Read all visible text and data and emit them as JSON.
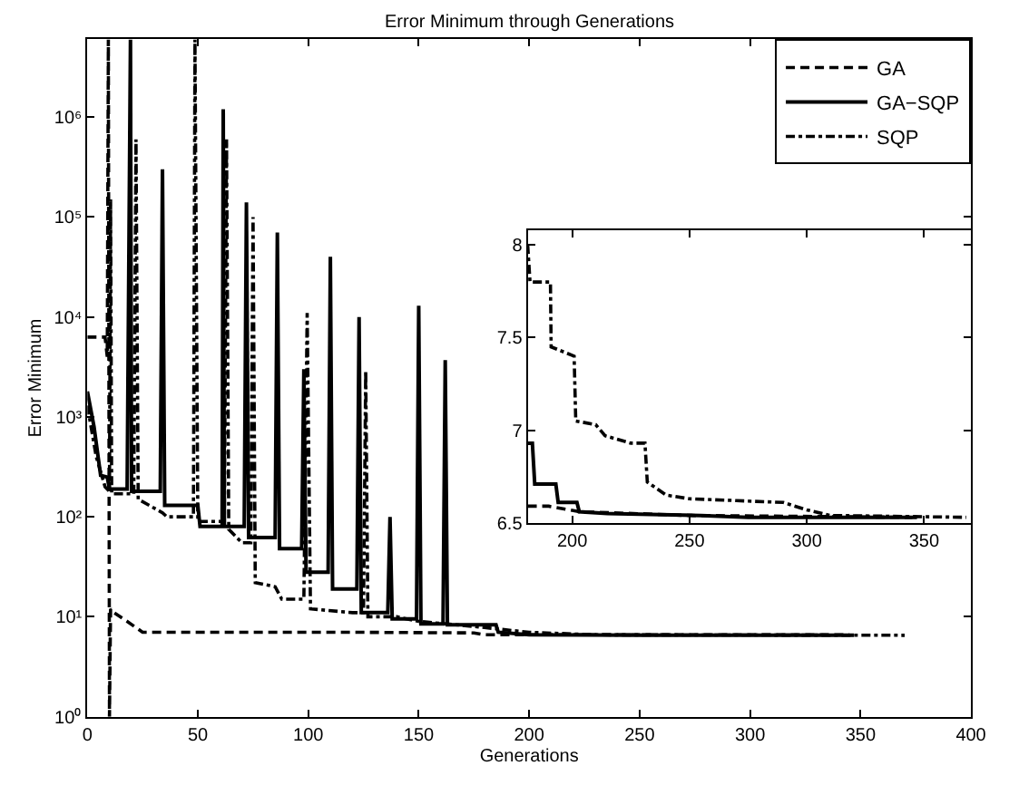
{
  "chart_data": [
    {
      "type": "line",
      "title": "Error Minimum through Generations",
      "xlabel": "Generations",
      "ylabel": "Error Minimum",
      "log": "y",
      "legend": "top right",
      "marker": "none",
      "xlim": [
        0,
        400
      ],
      "xticks": [
        0,
        50,
        100,
        150,
        200,
        250,
        300,
        350,
        400
      ],
      "ylim": [
        1,
        6000000
      ],
      "yticks": [
        {
          "value": 1,
          "label": "10⁰"
        },
        {
          "value": 10,
          "label": "10¹"
        },
        {
          "value": 100,
          "label": "10²"
        },
        {
          "value": 1000,
          "label": "10³"
        },
        {
          "value": 10000,
          "label": "10⁴"
        },
        {
          "value": 100000,
          "label": "10⁵"
        },
        {
          "value": 1000000,
          "label": "10⁶"
        }
      ],
      "series": [
        {
          "name": "GA",
          "color": "#000000",
          "line_style": "dashed",
          "x": [
            0,
            8,
            9,
            9.5,
            10,
            10.5,
            12,
            18,
            25,
            60,
            120,
            175,
            180,
            250,
            345
          ],
          "values": [
            6300,
            6300,
            4000,
            6000000,
            1,
            12,
            11,
            9,
            7,
            7,
            7,
            6.9,
            6.6,
            6.6,
            6.6
          ]
        },
        {
          "name": "GA−SQP",
          "color": "#000000",
          "line_style": "solid",
          "x": [
            0,
            3,
            6,
            9,
            10,
            18,
            19.5,
            20,
            31,
            33,
            34,
            35,
            48,
            50,
            51,
            61,
            61.5,
            62,
            71,
            72,
            73,
            85,
            86,
            87,
            97,
            98,
            99,
            109,
            110,
            111,
            122,
            123,
            124,
            136,
            137,
            138,
            149,
            150,
            151,
            161,
            162,
            163,
            185,
            186,
            200,
            250,
            347
          ],
          "values": [
            1800,
            800,
            260,
            250,
            190,
            190,
            6000000,
            180,
            180,
            180,
            300000,
            130,
            130,
            130,
            80,
            80,
            1200000,
            80,
            80,
            140000,
            62,
            62,
            70000,
            48,
            48,
            3000,
            28,
            28,
            40000,
            19,
            19,
            10000,
            11,
            11,
            100,
            9.5,
            9.5,
            13000,
            8.5,
            8.5,
            3700,
            8.3,
            8.3,
            7.0,
            6.6,
            6.55,
            6.53
          ]
        },
        {
          "name": "SQP",
          "color": "#000000",
          "line_style": "dashdot",
          "x": [
            0,
            4,
            8,
            10,
            10.5,
            11,
            21,
            22,
            23,
            34,
            36,
            48,
            48.7,
            50,
            62,
            63,
            64,
            70,
            74,
            75,
            76,
            85,
            88,
            98,
            99.5,
            101,
            120,
            125,
            126,
            127,
            140,
            150,
            175,
            200,
            230,
            300,
            370
          ],
          "values": [
            1300,
            400,
            200,
            180,
            150000,
            170,
            170,
            600000,
            150,
            110,
            100,
            100,
            6000000,
            90,
            90,
            600000,
            75,
            55,
            55,
            100000,
            22,
            20,
            15,
            15,
            11000,
            12,
            11,
            11,
            2900,
            10,
            10,
            9,
            8,
            7,
            6.6,
            6.57,
            6.53
          ]
        }
      ]
    },
    {
      "type": "line",
      "legend": false,
      "marker": "none",
      "xlim": [
        181,
        370
      ],
      "xticks": [
        200,
        250,
        300,
        350
      ],
      "ylim": [
        6.5,
        8.08
      ],
      "yticks": [
        6.5,
        7,
        7.5,
        8
      ],
      "series": [
        {
          "color": "#000000",
          "line_style": "dashed",
          "x": [
            181,
            190,
            203,
            250,
            345
          ],
          "values": [
            6.59,
            6.59,
            6.56,
            6.54,
            6.53
          ]
        },
        {
          "color": "#000000",
          "line_style": "solid",
          "x": [
            181,
            183,
            184,
            193,
            194,
            202,
            203,
            215,
            255,
            275,
            347
          ],
          "values": [
            6.93,
            6.93,
            6.71,
            6.71,
            6.61,
            6.61,
            6.56,
            6.55,
            6.54,
            6.53,
            6.53
          ]
        },
        {
          "color": "#000000",
          "line_style": "dashdot",
          "x": [
            181,
            182,
            190.7,
            191,
            200.8,
            201.5,
            210,
            214,
            225,
            231,
            232,
            240,
            250,
            270,
            290,
            300,
            310,
            368
          ],
          "values": [
            8.0,
            7.8,
            7.8,
            7.45,
            7.4,
            7.05,
            7.03,
            6.97,
            6.93,
            6.93,
            6.72,
            6.65,
            6.63,
            6.62,
            6.61,
            6.57,
            6.54,
            6.53
          ]
        }
      ]
    }
  ]
}
